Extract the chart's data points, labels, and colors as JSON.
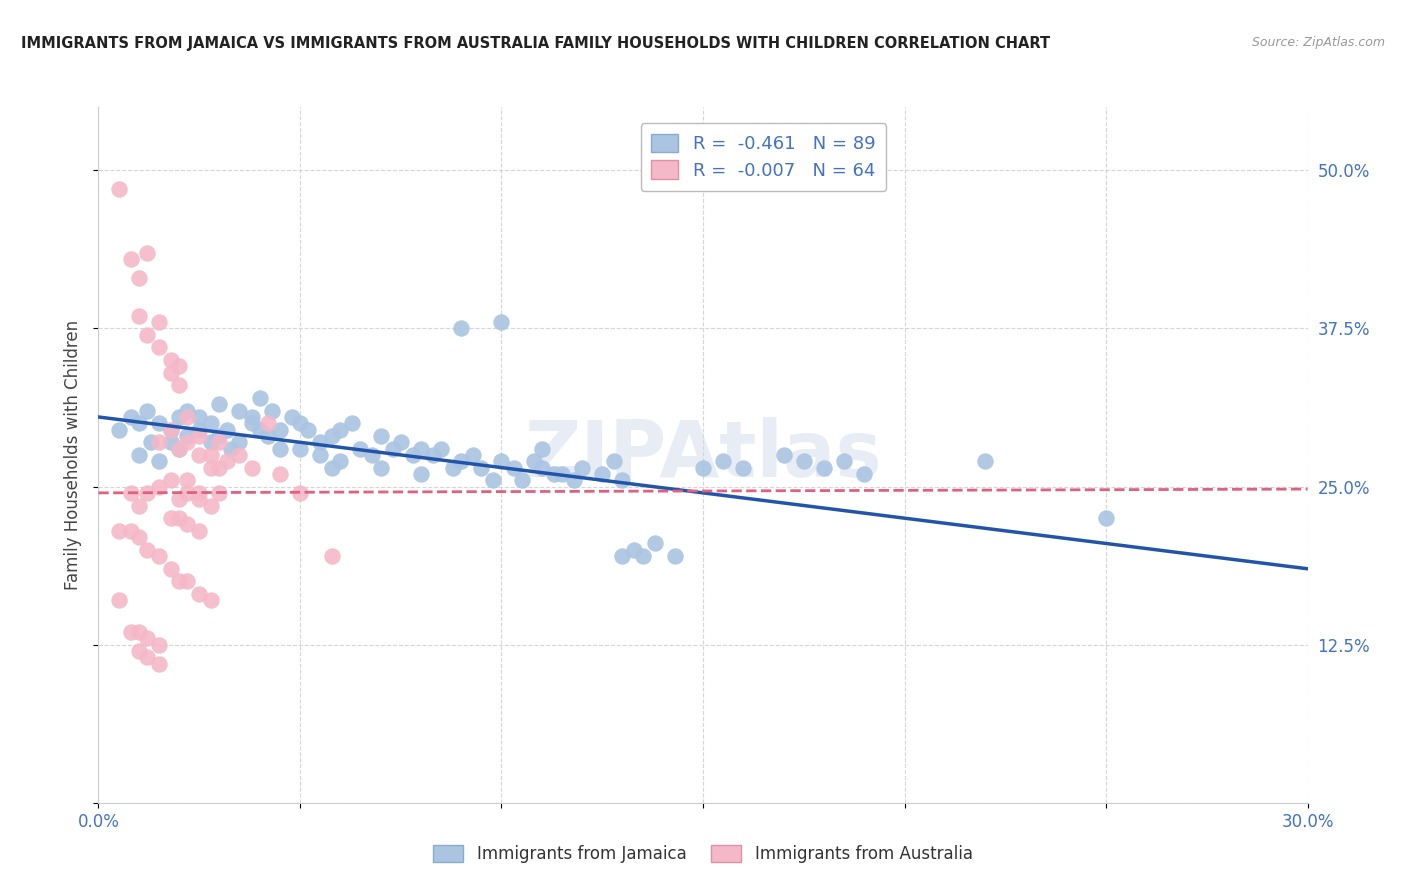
{
  "title": "IMMIGRANTS FROM JAMAICA VS IMMIGRANTS FROM AUSTRALIA FAMILY HOUSEHOLDS WITH CHILDREN CORRELATION CHART",
  "source": "Source: ZipAtlas.com",
  "ylabel": "Family Households with Children",
  "xlim": [
    0.0,
    0.3
  ],
  "ylim": [
    0.0,
    0.55
  ],
  "x_ticks": [
    0.0,
    0.05,
    0.1,
    0.15,
    0.2,
    0.25,
    0.3
  ],
  "y_ticks": [
    0.0,
    0.125,
    0.25,
    0.375,
    0.5
  ],
  "y_tick_labels": [
    "",
    "12.5%",
    "25.0%",
    "37.5%",
    "50.0%"
  ],
  "jamaica_color": "#aac4e2",
  "australia_color": "#f4b8c8",
  "jamaica_line_color": "#2255aa",
  "australia_line_color": "#e06080",
  "jamaica_R": -0.461,
  "jamaica_N": 89,
  "australia_R": -0.007,
  "australia_N": 64,
  "legend_text_color": "#4472c4",
  "watermark": "ZIPAtlas",
  "background_color": "#ffffff",
  "grid_color": "#cccccc",
  "jamaica_scatter": [
    [
      0.005,
      0.295
    ],
    [
      0.008,
      0.305
    ],
    [
      0.01,
      0.3
    ],
    [
      0.01,
      0.275
    ],
    [
      0.012,
      0.31
    ],
    [
      0.013,
      0.285
    ],
    [
      0.015,
      0.3
    ],
    [
      0.015,
      0.27
    ],
    [
      0.018,
      0.295
    ],
    [
      0.018,
      0.285
    ],
    [
      0.02,
      0.305
    ],
    [
      0.02,
      0.28
    ],
    [
      0.022,
      0.31
    ],
    [
      0.022,
      0.29
    ],
    [
      0.025,
      0.295
    ],
    [
      0.025,
      0.305
    ],
    [
      0.028,
      0.3
    ],
    [
      0.028,
      0.285
    ],
    [
      0.03,
      0.315
    ],
    [
      0.03,
      0.29
    ],
    [
      0.032,
      0.295
    ],
    [
      0.033,
      0.28
    ],
    [
      0.035,
      0.31
    ],
    [
      0.035,
      0.285
    ],
    [
      0.038,
      0.305
    ],
    [
      0.038,
      0.3
    ],
    [
      0.04,
      0.32
    ],
    [
      0.04,
      0.295
    ],
    [
      0.042,
      0.29
    ],
    [
      0.043,
      0.31
    ],
    [
      0.045,
      0.295
    ],
    [
      0.045,
      0.28
    ],
    [
      0.048,
      0.305
    ],
    [
      0.05,
      0.3
    ],
    [
      0.05,
      0.28
    ],
    [
      0.052,
      0.295
    ],
    [
      0.055,
      0.285
    ],
    [
      0.055,
      0.275
    ],
    [
      0.058,
      0.29
    ],
    [
      0.058,
      0.265
    ],
    [
      0.06,
      0.295
    ],
    [
      0.06,
      0.27
    ],
    [
      0.063,
      0.3
    ],
    [
      0.065,
      0.28
    ],
    [
      0.068,
      0.275
    ],
    [
      0.07,
      0.29
    ],
    [
      0.07,
      0.265
    ],
    [
      0.073,
      0.28
    ],
    [
      0.075,
      0.285
    ],
    [
      0.078,
      0.275
    ],
    [
      0.08,
      0.28
    ],
    [
      0.08,
      0.26
    ],
    [
      0.083,
      0.275
    ],
    [
      0.085,
      0.28
    ],
    [
      0.088,
      0.265
    ],
    [
      0.09,
      0.375
    ],
    [
      0.09,
      0.27
    ],
    [
      0.093,
      0.275
    ],
    [
      0.095,
      0.265
    ],
    [
      0.098,
      0.255
    ],
    [
      0.1,
      0.38
    ],
    [
      0.1,
      0.27
    ],
    [
      0.103,
      0.265
    ],
    [
      0.105,
      0.255
    ],
    [
      0.108,
      0.27
    ],
    [
      0.11,
      0.265
    ],
    [
      0.11,
      0.28
    ],
    [
      0.113,
      0.26
    ],
    [
      0.115,
      0.26
    ],
    [
      0.118,
      0.255
    ],
    [
      0.12,
      0.265
    ],
    [
      0.125,
      0.26
    ],
    [
      0.128,
      0.27
    ],
    [
      0.13,
      0.255
    ],
    [
      0.13,
      0.195
    ],
    [
      0.133,
      0.2
    ],
    [
      0.135,
      0.195
    ],
    [
      0.138,
      0.205
    ],
    [
      0.143,
      0.195
    ],
    [
      0.15,
      0.265
    ],
    [
      0.155,
      0.27
    ],
    [
      0.16,
      0.265
    ],
    [
      0.17,
      0.275
    ],
    [
      0.175,
      0.27
    ],
    [
      0.18,
      0.265
    ],
    [
      0.185,
      0.27
    ],
    [
      0.19,
      0.26
    ],
    [
      0.22,
      0.27
    ],
    [
      0.25,
      0.225
    ]
  ],
  "australia_scatter": [
    [
      0.005,
      0.485
    ],
    [
      0.008,
      0.43
    ],
    [
      0.01,
      0.415
    ],
    [
      0.012,
      0.435
    ],
    [
      0.01,
      0.385
    ],
    [
      0.012,
      0.37
    ],
    [
      0.015,
      0.36
    ],
    [
      0.015,
      0.38
    ],
    [
      0.018,
      0.35
    ],
    [
      0.018,
      0.34
    ],
    [
      0.02,
      0.33
    ],
    [
      0.02,
      0.345
    ],
    [
      0.015,
      0.285
    ],
    [
      0.018,
      0.295
    ],
    [
      0.02,
      0.28
    ],
    [
      0.022,
      0.285
    ],
    [
      0.022,
      0.305
    ],
    [
      0.025,
      0.275
    ],
    [
      0.025,
      0.29
    ],
    [
      0.028,
      0.275
    ],
    [
      0.028,
      0.265
    ],
    [
      0.03,
      0.265
    ],
    [
      0.03,
      0.285
    ],
    [
      0.032,
      0.27
    ],
    [
      0.018,
      0.255
    ],
    [
      0.02,
      0.24
    ],
    [
      0.022,
      0.255
    ],
    [
      0.022,
      0.245
    ],
    [
      0.025,
      0.245
    ],
    [
      0.025,
      0.24
    ],
    [
      0.028,
      0.235
    ],
    [
      0.03,
      0.245
    ],
    [
      0.008,
      0.245
    ],
    [
      0.01,
      0.235
    ],
    [
      0.012,
      0.245
    ],
    [
      0.015,
      0.25
    ],
    [
      0.018,
      0.225
    ],
    [
      0.02,
      0.225
    ],
    [
      0.022,
      0.22
    ],
    [
      0.025,
      0.215
    ],
    [
      0.005,
      0.215
    ],
    [
      0.008,
      0.215
    ],
    [
      0.01,
      0.21
    ],
    [
      0.012,
      0.2
    ],
    [
      0.015,
      0.195
    ],
    [
      0.018,
      0.185
    ],
    [
      0.02,
      0.175
    ],
    [
      0.022,
      0.175
    ],
    [
      0.025,
      0.165
    ],
    [
      0.028,
      0.16
    ],
    [
      0.005,
      0.16
    ],
    [
      0.008,
      0.135
    ],
    [
      0.01,
      0.135
    ],
    [
      0.012,
      0.13
    ],
    [
      0.015,
      0.125
    ],
    [
      0.01,
      0.12
    ],
    [
      0.012,
      0.115
    ],
    [
      0.015,
      0.11
    ],
    [
      0.035,
      0.275
    ],
    [
      0.038,
      0.265
    ],
    [
      0.042,
      0.3
    ],
    [
      0.045,
      0.26
    ],
    [
      0.05,
      0.245
    ],
    [
      0.058,
      0.195
    ]
  ],
  "jamaica_line": [
    [
      0.0,
      0.305
    ],
    [
      0.3,
      0.185
    ]
  ],
  "australia_line": [
    [
      0.0,
      0.245
    ],
    [
      0.3,
      0.248
    ]
  ]
}
